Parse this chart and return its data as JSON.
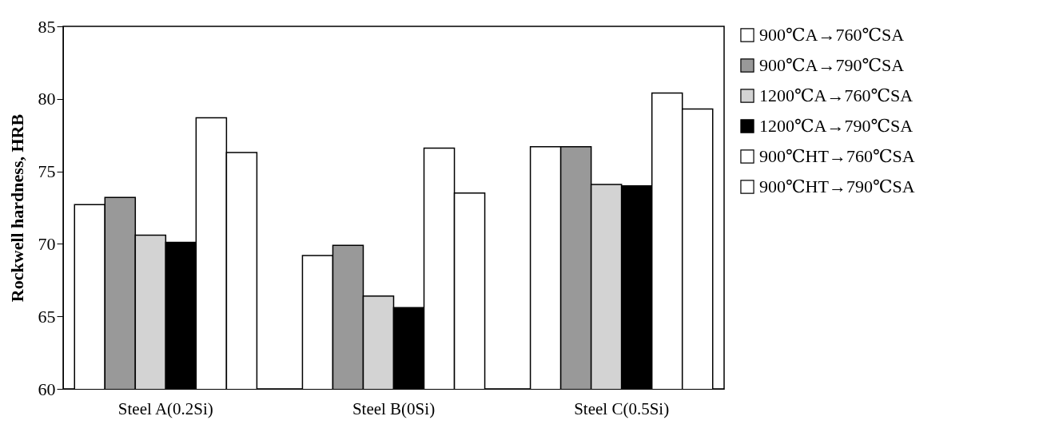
{
  "chart_data": {
    "type": "bar",
    "ylabel": "Rockwell hardness, HRB",
    "categories": [
      "Steel A(0.2Si)",
      "Steel B(0Si)",
      "Steel C(0.5Si)"
    ],
    "series": [
      {
        "name": "900℃A→760℃SA",
        "color": "#ffffff",
        "values": [
          72.7,
          69.2,
          76.7
        ]
      },
      {
        "name": "900℃A→790℃SA",
        "color": "#999999",
        "values": [
          73.2,
          69.9,
          76.7
        ]
      },
      {
        "name": "1200℃A→760℃SA",
        "color": "#d3d3d3",
        "values": [
          70.6,
          66.4,
          74.1
        ]
      },
      {
        "name": "1200℃A→790℃SA",
        "color": "#000000",
        "values": [
          70.1,
          65.6,
          74.0
        ]
      },
      {
        "name": "900℃HT→760℃SA",
        "color": "#ffffff",
        "values": [
          78.7,
          76.6,
          80.4
        ]
      },
      {
        "name": "900℃HT→790℃SA",
        "color": "#ffffff",
        "values": [
          76.3,
          73.5,
          79.3
        ]
      }
    ],
    "ylim": [
      60,
      85
    ],
    "yticks": [
      60,
      65,
      70,
      75,
      80,
      85
    ],
    "grid": false,
    "legend": "right"
  }
}
